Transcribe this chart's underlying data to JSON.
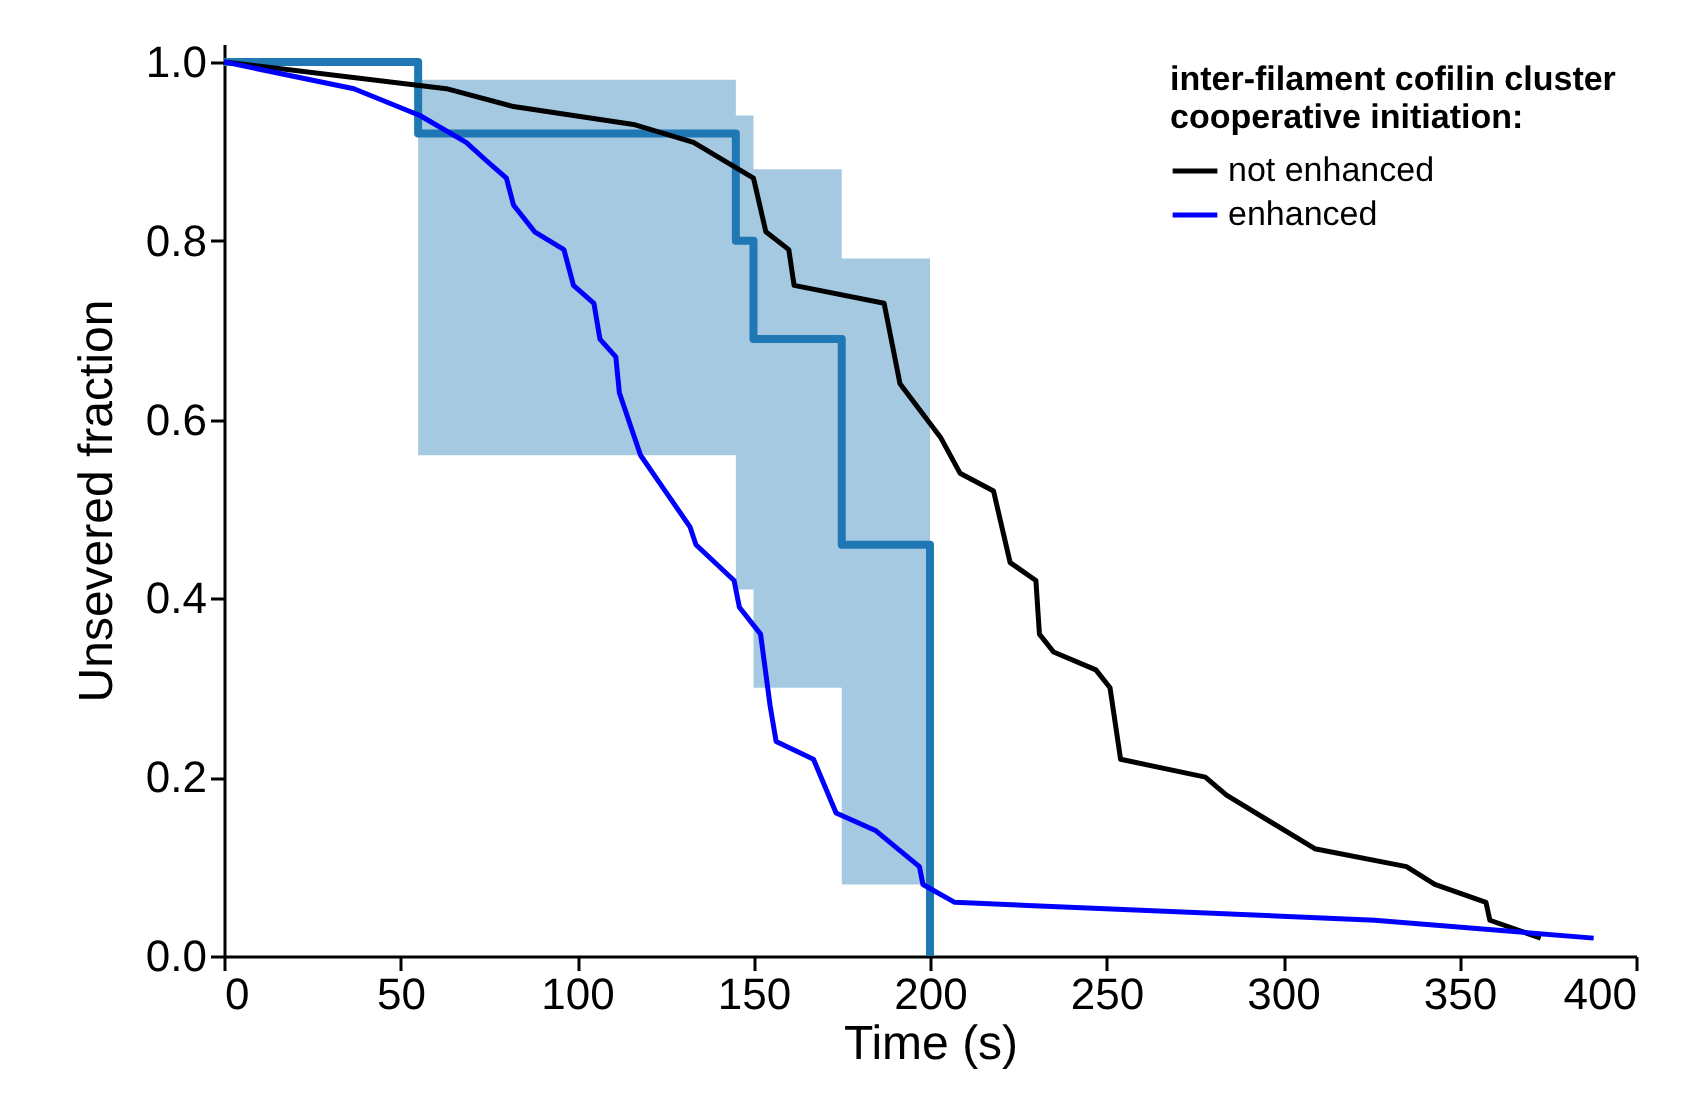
{
  "chart_data": {
    "type": "line",
    "xlabel": "Time (s)",
    "ylabel": "Unsevered fraction",
    "legend_title": "inter-filament cofilin cluster cooperative initiation:",
    "legend": "top right",
    "grid": false,
    "marker": "none",
    "line_style": "solid",
    "xlim": [
      0,
      400
    ],
    "xticks": [
      0,
      50,
      100,
      150,
      200,
      250,
      300,
      350,
      400
    ],
    "ylim": [
      0,
      1.02
    ],
    "yticks": [
      {
        "value": 0,
        "label": "0.0"
      },
      {
        "value": 0.2,
        "label": "0.2"
      },
      {
        "value": 0.4,
        "label": "0.4"
      },
      {
        "value": 0.6,
        "label": "0.6"
      },
      {
        "value": 0.8,
        "label": "0.8"
      },
      {
        "value": 1,
        "label": "1.0"
      }
    ],
    "series": [
      {
        "type": "step",
        "color": "#1f77b4",
        "x": [
          0,
          55,
          145,
          150,
          175,
          200
        ],
        "values": [
          1,
          0.92,
          0.8,
          0.69,
          0.46,
          0
        ],
        "lower": [
          1,
          0.56,
          0.41,
          0.3,
          0.08,
          0.08
        ],
        "upper": [
          1,
          0.98,
          0.94,
          0.88,
          0.78,
          0.78
        ]
      },
      {
        "type": "line",
        "name": "not enhanced",
        "color": "#000000",
        "x": [
          0,
          63,
          82,
          116,
          133,
          150,
          153.5,
          160,
          161.5,
          187,
          191.5,
          203,
          208.5,
          218,
          222.7,
          230,
          231,
          235,
          247,
          251,
          254,
          278,
          284,
          309,
          335,
          343,
          357.5,
          358.6,
          373
        ],
        "values": [
          1,
          0.97,
          0.95,
          0.93,
          0.91,
          0.87,
          0.81,
          0.79,
          0.75,
          0.73,
          0.64,
          0.58,
          0.54,
          0.52,
          0.44,
          0.42,
          0.36,
          0.34,
          0.32,
          0.3,
          0.22,
          0.2,
          0.18,
          0.12,
          0.1,
          0.08,
          0.06,
          0.04,
          0.02
        ]
      },
      {
        "type": "line",
        "name": "enhanced",
        "color": "#0000ff",
        "x": [
          0,
          36.8,
          55.5,
          68.6,
          74.2,
          80,
          82,
          88,
          96.3,
          99,
          104.8,
          106.5,
          111,
          112,
          118,
          125,
          132,
          133.7,
          144.5,
          146,
          152,
          154.7,
          156.4,
          167,
          173.4,
          184.7,
          197,
          198,
          207,
          326,
          388
        ],
        "values": [
          1,
          0.97,
          0.94,
          0.91,
          0.89,
          0.87,
          0.84,
          0.81,
          0.79,
          0.75,
          0.73,
          0.69,
          0.67,
          0.63,
          0.56,
          0.52,
          0.48,
          0.46,
          0.42,
          0.39,
          0.36,
          0.28,
          0.24,
          0.22,
          0.16,
          0.14,
          0.1,
          0.08,
          0.06,
          0.04,
          0.02
        ]
      }
    ]
  }
}
